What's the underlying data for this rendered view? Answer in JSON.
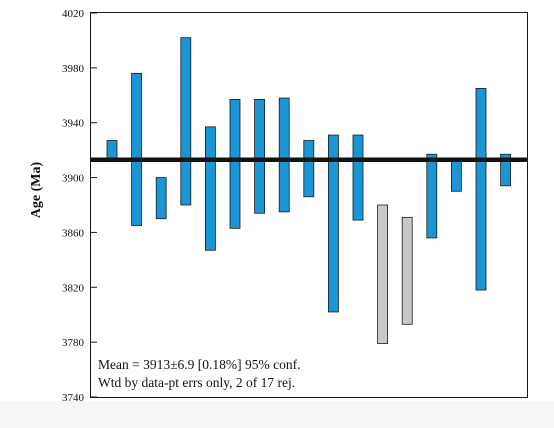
{
  "chart_data": {
    "type": "bar",
    "ylabel": "Age (Ma)",
    "ylim": [
      3740,
      4020
    ],
    "yticks": [
      3740,
      3780,
      3820,
      3860,
      3900,
      3940,
      3980,
      4020
    ],
    "grid": false,
    "mean_line": 3913,
    "colors": {
      "accepted": "#1a96d6",
      "rejected": "#c8c8c8",
      "mean_line": "#111111",
      "edge": "#1a1a1a"
    },
    "series": [
      {
        "values": [
          {
            "low": 3913,
            "high": 3927,
            "rejected": false
          },
          {
            "low": 3865,
            "high": 3976,
            "rejected": false
          },
          {
            "low": 3870,
            "high": 3900,
            "rejected": false
          },
          {
            "low": 3880,
            "high": 4002,
            "rejected": false
          },
          {
            "low": 3847,
            "high": 3937,
            "rejected": false
          },
          {
            "low": 3863,
            "high": 3957,
            "rejected": false
          },
          {
            "low": 3874,
            "high": 3957,
            "rejected": false
          },
          {
            "low": 3875,
            "high": 3958,
            "rejected": false
          },
          {
            "low": 3886,
            "high": 3927,
            "rejected": false
          },
          {
            "low": 3802,
            "high": 3931,
            "rejected": false
          },
          {
            "low": 3869,
            "high": 3931,
            "rejected": false
          },
          {
            "low": 3779,
            "high": 3880,
            "rejected": true
          },
          {
            "low": 3793,
            "high": 3871,
            "rejected": true
          },
          {
            "low": 3856,
            "high": 3917,
            "rejected": false
          },
          {
            "low": 3890,
            "high": 3912,
            "rejected": false
          },
          {
            "low": 3818,
            "high": 3965,
            "rejected": false
          },
          {
            "low": 3894,
            "high": 3917,
            "rejected": false
          }
        ]
      }
    ],
    "annotations": [
      "Mean = 3913±6.9 [0.18%] 95% conf.",
      "Wtd by data-pt errs only, 2 of 17 rej."
    ]
  }
}
